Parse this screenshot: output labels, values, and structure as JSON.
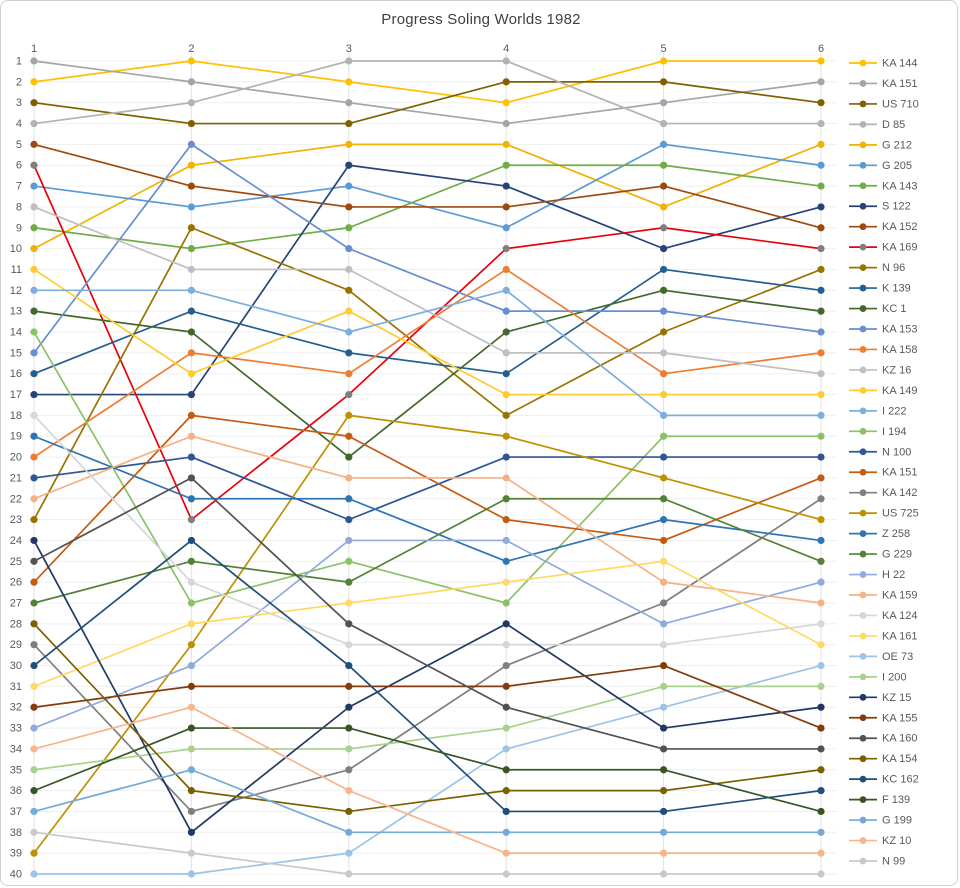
{
  "window": {
    "title": "Progress Soling Worlds 1982"
  },
  "colors": {
    "title_text": "#404040",
    "axis_text": "#595959",
    "legend_text": "#595959",
    "grid_horizontal": "#efefef",
    "grid_vertical": "#e2e2e2",
    "frame_border": "#d0d0d0",
    "background": "#ffffff"
  },
  "chart_data": {
    "type": "line",
    "title": "Progress Soling Worlds 1982",
    "xlabel": "",
    "ylabel": "",
    "x": [
      1,
      2,
      3,
      4,
      5,
      6
    ],
    "x_axis": {
      "position": "top",
      "tick_labels": [
        "1",
        "2",
        "3",
        "4",
        "5",
        "6"
      ]
    },
    "y_axis": {
      "min": 1,
      "max": 40,
      "step": 1,
      "inverted": true,
      "meaning": "rank"
    },
    "grid": true,
    "legend_position": "right",
    "marker": "circle",
    "series": [
      {
        "name": "KA 144",
        "color": "#FFC000",
        "values": [
          2,
          1,
          2,
          3,
          1,
          1
        ]
      },
      {
        "name": "KA 151",
        "color": "#A5A5A5",
        "values": [
          1,
          2,
          3,
          4,
          3,
          2
        ]
      },
      {
        "name": "US 710",
        "color": "#806000",
        "values": [
          3,
          4,
          4,
          2,
          2,
          3
        ]
      },
      {
        "name": "D 85",
        "color": "#B3B3B3",
        "values": [
          4,
          3,
          1,
          1,
          4,
          4
        ]
      },
      {
        "name": "G 212",
        "color": "#F0B400",
        "values": [
          10,
          6,
          5,
          5,
          8,
          5
        ]
      },
      {
        "name": "G 205",
        "color": "#5B9BD5",
        "values": [
          7,
          8,
          7,
          9,
          5,
          6
        ]
      },
      {
        "name": "KA 143",
        "color": "#70AD47",
        "values": [
          9,
          10,
          9,
          6,
          6,
          7
        ]
      },
      {
        "name": "S 122",
        "color": "#264478",
        "values": [
          17,
          17,
          6,
          7,
          10,
          8
        ]
      },
      {
        "name": "KA 152",
        "color": "#9E4A0E",
        "values": [
          5,
          7,
          8,
          8,
          7,
          9
        ]
      },
      {
        "name": "KA 169",
        "color": "#E8000D",
        "marker_color": "#7F7F7F",
        "values": [
          6,
          23,
          17,
          10,
          9,
          10
        ]
      },
      {
        "name": "N 96",
        "color": "#997300",
        "values": [
          23,
          9,
          12,
          18,
          14,
          11
        ]
      },
      {
        "name": "K 139",
        "color": "#255E91",
        "values": [
          16,
          13,
          15,
          16,
          11,
          12
        ]
      },
      {
        "name": "KC 1",
        "color": "#43682B",
        "values": [
          13,
          14,
          20,
          14,
          12,
          13
        ]
      },
      {
        "name": "KA 153",
        "color": "#698ED0",
        "values": [
          15,
          5,
          10,
          13,
          13,
          14
        ]
      },
      {
        "name": "KA 158",
        "color": "#ED7D31",
        "values": [
          20,
          15,
          16,
          11,
          16,
          15
        ]
      },
      {
        "name": "KZ 16",
        "color": "#BFBFBF",
        "values": [
          8,
          11,
          11,
          15,
          15,
          16
        ]
      },
      {
        "name": "KA 149",
        "color": "#FFCB2F",
        "values": [
          11,
          16,
          13,
          17,
          17,
          17
        ]
      },
      {
        "name": "I 222",
        "color": "#7CAFDD",
        "values": [
          12,
          12,
          14,
          12,
          18,
          18
        ]
      },
      {
        "name": "I 194",
        "color": "#8CC168",
        "values": [
          14,
          27,
          25,
          27,
          19,
          19
        ]
      },
      {
        "name": "N 100",
        "color": "#2F5597",
        "values": [
          21,
          20,
          23,
          20,
          20,
          20
        ]
      },
      {
        "name": "KA 151",
        "color": "#C55A11",
        "values": [
          26,
          18,
          19,
          23,
          24,
          21
        ]
      },
      {
        "name": "KA 142",
        "color": "#7F7F7F",
        "values": [
          29,
          37,
          35,
          30,
          27,
          22
        ]
      },
      {
        "name": "US 725",
        "color": "#BF9000",
        "values": [
          39,
          29,
          18,
          19,
          21,
          23
        ]
      },
      {
        "name": "Z 258",
        "color": "#2E75B6",
        "values": [
          19,
          22,
          22,
          25,
          23,
          24
        ]
      },
      {
        "name": "G 229",
        "color": "#538135",
        "values": [
          27,
          25,
          26,
          22,
          22,
          25
        ]
      },
      {
        "name": "H 22",
        "color": "#8FAADC",
        "values": [
          33,
          30,
          24,
          24,
          28,
          26
        ]
      },
      {
        "name": "KA 159",
        "color": "#F4B183",
        "values": [
          22,
          19,
          21,
          21,
          26,
          27
        ]
      },
      {
        "name": "KA 124",
        "color": "#D6D6D6",
        "values": [
          18,
          26,
          29,
          29,
          29,
          28
        ]
      },
      {
        "name": "KA 161",
        "color": "#FFD966",
        "values": [
          31,
          28,
          27,
          26,
          25,
          29
        ]
      },
      {
        "name": "OE 73",
        "color": "#9DC3E6",
        "values": [
          40,
          40,
          39,
          34,
          32,
          30
        ]
      },
      {
        "name": "I 200",
        "color": "#A9D18E",
        "values": [
          35,
          34,
          34,
          33,
          31,
          31
        ]
      },
      {
        "name": "KZ 15",
        "color": "#203864",
        "values": [
          24,
          38,
          32,
          28,
          33,
          32
        ]
      },
      {
        "name": "KA 155",
        "color": "#843C0C",
        "values": [
          32,
          31,
          31,
          31,
          30,
          33
        ]
      },
      {
        "name": "KA 160",
        "color": "#525252",
        "values": [
          25,
          21,
          28,
          32,
          34,
          34
        ]
      },
      {
        "name": "KA 154",
        "color": "#7A6000",
        "values": [
          28,
          36,
          37,
          36,
          36,
          35
        ]
      },
      {
        "name": "KC 162",
        "color": "#1F4E79",
        "values": [
          30,
          24,
          30,
          37,
          37,
          36
        ]
      },
      {
        "name": "F 139",
        "color": "#375623",
        "values": [
          36,
          33,
          33,
          35,
          35,
          37
        ]
      },
      {
        "name": "G 199",
        "color": "#74A9D8",
        "values": [
          37,
          35,
          38,
          38,
          38,
          38
        ]
      },
      {
        "name": "KZ 10",
        "color": "#F8B48B",
        "values": [
          34,
          32,
          36,
          39,
          39,
          39
        ]
      },
      {
        "name": "N 99",
        "color": "#C9C9C9",
        "values": [
          38,
          39,
          40,
          40,
          40,
          40
        ]
      }
    ]
  }
}
